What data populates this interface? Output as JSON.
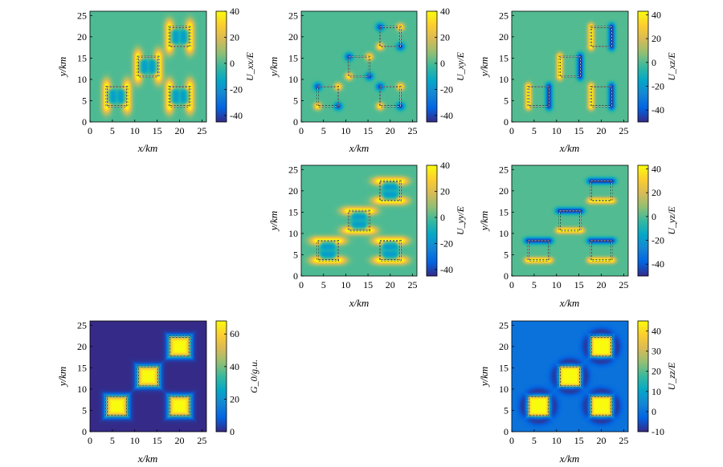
{
  "colors": {
    "parula": [
      "#352a87",
      "#0363e1",
      "#1485d4",
      "#06a7c6",
      "#38b99e",
      "#92bf73",
      "#d9ba56",
      "#fcce2e",
      "#f9fb0e"
    ],
    "contour": "#1a2a4a",
    "marker_black": "#000000",
    "marker_white": "#ffffff"
  },
  "chart_data": [
    {
      "id": "uxx",
      "type": "heatmap",
      "field": "xx",
      "xlabel": "x/km",
      "ylabel": "y/km",
      "xlim": [
        0,
        26
      ],
      "ylim": [
        0,
        26
      ],
      "xticks": [
        0,
        5,
        10,
        15,
        20,
        25
      ],
      "yticks": [
        0,
        5,
        10,
        15,
        20,
        25
      ],
      "clim": [
        -45,
        40
      ],
      "cticks": [
        40,
        20,
        0,
        -20,
        -40
      ],
      "colorbar_label": "U_xx/E",
      "sources": [
        [
          6,
          6
        ],
        [
          20,
          6
        ],
        [
          13,
          13
        ],
        [
          20,
          20
        ]
      ],
      "source_half_size": 2.3
    },
    {
      "id": "uxy",
      "type": "heatmap",
      "field": "xy",
      "xlabel": "x/km",
      "ylabel": "y/km",
      "xlim": [
        0,
        26
      ],
      "ylim": [
        0,
        26
      ],
      "xticks": [
        0,
        5,
        10,
        15,
        20,
        25
      ],
      "yticks": [
        0,
        5,
        10,
        15,
        20,
        25
      ],
      "clim": [
        -45,
        40
      ],
      "cticks": [
        40,
        20,
        0,
        -20,
        -40
      ],
      "colorbar_label": "U_xy/E",
      "sources": [
        [
          6,
          6
        ],
        [
          20,
          6
        ],
        [
          13,
          13
        ],
        [
          20,
          20
        ]
      ],
      "source_half_size": 2.3
    },
    {
      "id": "uxz",
      "type": "heatmap",
      "field": "xz",
      "xlabel": "x/km",
      "ylabel": "y/km",
      "xlim": [
        0,
        26
      ],
      "ylim": [
        0,
        26
      ],
      "xticks": [
        0,
        5,
        10,
        15,
        20,
        25
      ],
      "yticks": [
        0,
        5,
        10,
        15,
        20,
        25
      ],
      "clim": [
        -50,
        43
      ],
      "cticks": [
        40,
        20,
        0,
        -20,
        -40
      ],
      "colorbar_label": "U_xz/E",
      "sources": [
        [
          6,
          6
        ],
        [
          20,
          6
        ],
        [
          13,
          13
        ],
        [
          20,
          20
        ]
      ],
      "source_half_size": 2.3
    },
    {
      "id": "uyy",
      "type": "heatmap",
      "field": "yy",
      "xlabel": "x/km",
      "ylabel": "y/km",
      "xlim": [
        0,
        26
      ],
      "ylim": [
        0,
        26
      ],
      "xticks": [
        0,
        5,
        10,
        15,
        20,
        25
      ],
      "yticks": [
        0,
        5,
        10,
        15,
        20,
        25
      ],
      "clim": [
        -45,
        40
      ],
      "cticks": [
        40,
        20,
        0,
        -20,
        -40
      ],
      "colorbar_label": "U_yy/E",
      "sources": [
        [
          6,
          6
        ],
        [
          20,
          6
        ],
        [
          13,
          13
        ],
        [
          20,
          20
        ]
      ],
      "source_half_size": 2.3
    },
    {
      "id": "uyz",
      "type": "heatmap",
      "field": "yz",
      "xlabel": "x/km",
      "ylabel": "y/km",
      "xlim": [
        0,
        26
      ],
      "ylim": [
        0,
        26
      ],
      "xticks": [
        0,
        5,
        10,
        15,
        20,
        25
      ],
      "yticks": [
        0,
        5,
        10,
        15,
        20,
        25
      ],
      "clim": [
        -50,
        43
      ],
      "cticks": [
        40,
        20,
        0,
        -20,
        -40
      ],
      "colorbar_label": "U_yz/E",
      "sources": [
        [
          6,
          6
        ],
        [
          20,
          6
        ],
        [
          13,
          13
        ],
        [
          20,
          20
        ]
      ],
      "source_half_size": 2.3
    },
    {
      "id": "g0",
      "type": "heatmap",
      "field": "g0",
      "xlabel": "x/km",
      "ylabel": "y/km",
      "xlim": [
        0,
        26
      ],
      "ylim": [
        0,
        26
      ],
      "xticks": [
        0,
        5,
        10,
        15,
        20,
        25
      ],
      "yticks": [
        0,
        5,
        10,
        15,
        20,
        25
      ],
      "clim": [
        0,
        68
      ],
      "cticks": [
        60,
        40,
        20,
        0
      ],
      "colorbar_label": "G_0/g.u.",
      "sources": [
        [
          6,
          6
        ],
        [
          20,
          6
        ],
        [
          13,
          13
        ],
        [
          20,
          20
        ]
      ],
      "source_half_size": 2.3
    },
    {
      "id": "uzz",
      "type": "heatmap",
      "field": "zz",
      "xlabel": "x/km",
      "ylabel": "y/km",
      "xlim": [
        0,
        26
      ],
      "ylim": [
        0,
        26
      ],
      "xticks": [
        0,
        5,
        10,
        15,
        20,
        25
      ],
      "yticks": [
        0,
        5,
        10,
        15,
        20,
        25
      ],
      "clim": [
        -10,
        45
      ],
      "cticks": [
        40,
        30,
        20,
        10,
        0,
        -10
      ],
      "colorbar_label": "U_zz/E",
      "sources": [
        [
          6,
          6
        ],
        [
          20,
          6
        ],
        [
          13,
          13
        ],
        [
          20,
          20
        ]
      ],
      "source_half_size": 2.3
    }
  ]
}
